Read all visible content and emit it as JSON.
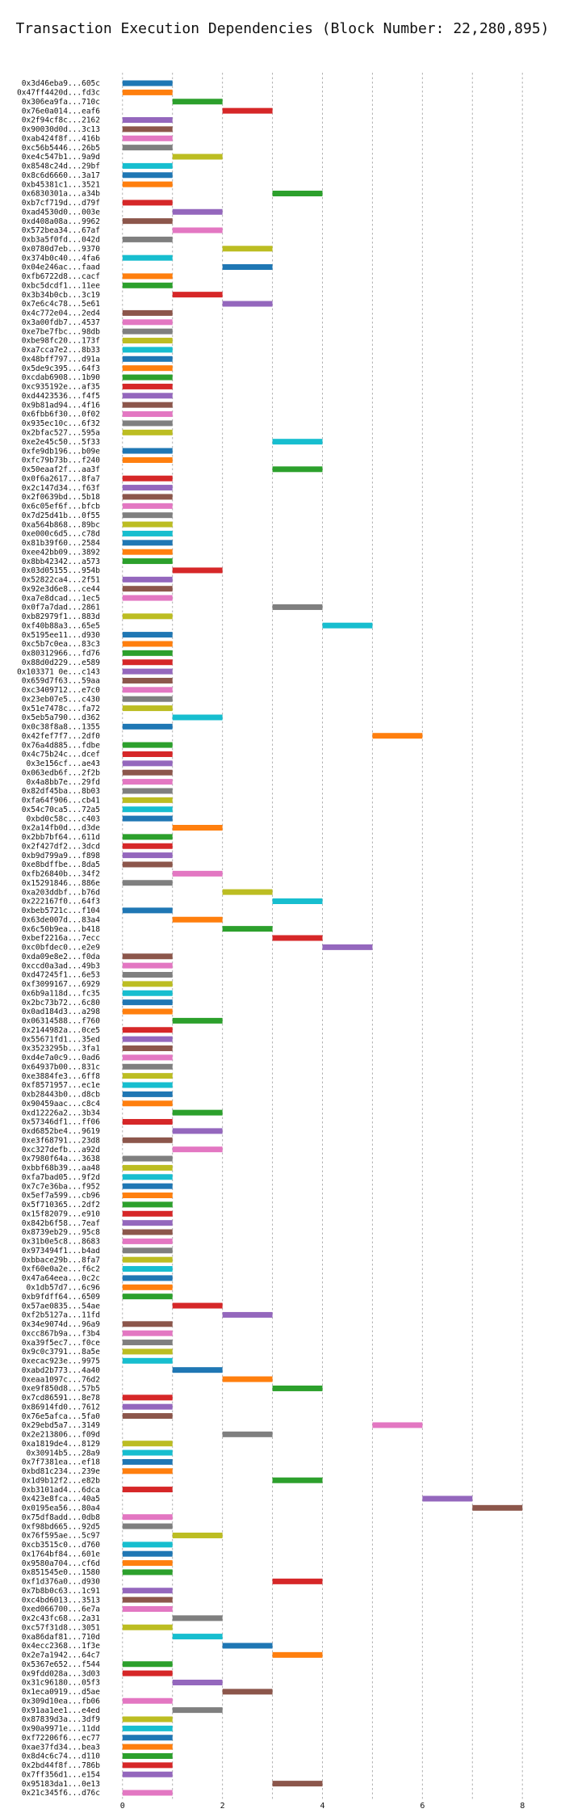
{
  "chart_data": {
    "type": "bar",
    "orientation": "horizontal-gantt",
    "title": "Transaction Execution Dependencies (Block Number: 22,280,895)",
    "xlabel": "",
    "ylabel": "",
    "xlim": [
      -0.4,
      8.4
    ],
    "xticks": [
      0,
      2,
      4,
      6,
      8
    ],
    "grid": "x-dashed",
    "legend": "none",
    "palette": [
      "#1f77b4",
      "#ff7f0e",
      "#2ca02c",
      "#d62728",
      "#9467bd",
      "#8c564b",
      "#e377c2",
      "#7f7f7f",
      "#bcbd22",
      "#17becf"
    ],
    "tasks": [
      {
        "label": "0x3d46eba9...605c",
        "start": 0,
        "end": 1
      },
      {
        "label": "0x47ff4420d...fd3c",
        "start": 0,
        "end": 1
      },
      {
        "label": "0x306ea9fa...710c",
        "start": 1,
        "end": 2
      },
      {
        "label": "0x76e0a014...eaf6",
        "start": 2,
        "end": 3
      },
      {
        "label": "0x2f94cf8c...2162",
        "start": 0,
        "end": 1
      },
      {
        "label": "0x90030d0d...3c13",
        "start": 0,
        "end": 1
      },
      {
        "label": "0xab424f8f...416b",
        "start": 0,
        "end": 1
      },
      {
        "label": "0xc56b5446...26b5",
        "start": 0,
        "end": 1
      },
      {
        "label": "0xe4c547b1...9a9d",
        "start": 1,
        "end": 2
      },
      {
        "label": "0x8548c24d...29bf",
        "start": 0,
        "end": 1
      },
      {
        "label": "0x8c6d6660...3a17",
        "start": 0,
        "end": 1
      },
      {
        "label": "0xb45381c1...3521",
        "start": 0,
        "end": 1
      },
      {
        "label": "0x6830301a...a34b",
        "start": 3,
        "end": 4
      },
      {
        "label": "0xb7cf719d...d79f",
        "start": 0,
        "end": 1
      },
      {
        "label": "0xad4530d0...003e",
        "start": 1,
        "end": 2
      },
      {
        "label": "0xd408a08a...9962",
        "start": 0,
        "end": 1
      },
      {
        "label": "0x572bea34...67af",
        "start": 1,
        "end": 2
      },
      {
        "label": "0xb3a5f0fd...042d",
        "start": 0,
        "end": 1
      },
      {
        "label": "0x0780d7eb...9370",
        "start": 2,
        "end": 3
      },
      {
        "label": "0x374b0c40...4fa6",
        "start": 0,
        "end": 1
      },
      {
        "label": "0x04e246ac...faad",
        "start": 2,
        "end": 3
      },
      {
        "label": "0xfb6722d8...cacf",
        "start": 0,
        "end": 1
      },
      {
        "label": "0xbc5dcdf1...11ee",
        "start": 0,
        "end": 1
      },
      {
        "label": "0x3b34b0cb...3c19",
        "start": 1,
        "end": 2
      },
      {
        "label": "0x7e6c4c78...5e61",
        "start": 2,
        "end": 3
      },
      {
        "label": "0x4c772e04...2ed4",
        "start": 0,
        "end": 1
      },
      {
        "label": "0x3a00fdb7...4537",
        "start": 0,
        "end": 1
      },
      {
        "label": "0xe7be7fbc...98db",
        "start": 0,
        "end": 1
      },
      {
        "label": "0xbe98fc20...173f",
        "start": 0,
        "end": 1
      },
      {
        "label": "0xa7cca7e2...8b33",
        "start": 0,
        "end": 1
      },
      {
        "label": "0x48bff797...d91a",
        "start": 0,
        "end": 1
      },
      {
        "label": "0x5de9c395...64f3",
        "start": 0,
        "end": 1
      },
      {
        "label": "0xcdab6908...1b90",
        "start": 0,
        "end": 1
      },
      {
        "label": "0xc935192e...af35",
        "start": 0,
        "end": 1
      },
      {
        "label": "0xd4423536...f4f5",
        "start": 0,
        "end": 1
      },
      {
        "label": "0x9b81ad94...4f16",
        "start": 0,
        "end": 1
      },
      {
        "label": "0x6fbb6f30...0f02",
        "start": 0,
        "end": 1
      },
      {
        "label": "0x935ec10c...6f32",
        "start": 0,
        "end": 1
      },
      {
        "label": "0x2bfac527...595a",
        "start": 0,
        "end": 1
      },
      {
        "label": "0xe2e45c50...5f33",
        "start": 3,
        "end": 4
      },
      {
        "label": "0xfe9db196...b09e",
        "start": 0,
        "end": 1
      },
      {
        "label": "0xfc79b73b...f240",
        "start": 0,
        "end": 1
      },
      {
        "label": "0x50eaaf2f...aa3f",
        "start": 3,
        "end": 4
      },
      {
        "label": "0x0f6a2617...8fa7",
        "start": 0,
        "end": 1
      },
      {
        "label": "0x2c147d34...f63f",
        "start": 0,
        "end": 1
      },
      {
        "label": "0x2f0639bd...5b18",
        "start": 0,
        "end": 1
      },
      {
        "label": "0x6c05ef6f...bfcb",
        "start": 0,
        "end": 1
      },
      {
        "label": "0x7d25d41b...0f55",
        "start": 0,
        "end": 1
      },
      {
        "label": "0xa564b868...89bc",
        "start": 0,
        "end": 1
      },
      {
        "label": "0xe000c6d5...c78d",
        "start": 0,
        "end": 1
      },
      {
        "label": "0x81b39f60...2584",
        "start": 0,
        "end": 1
      },
      {
        "label": "0xee42bb09...3892",
        "start": 0,
        "end": 1
      },
      {
        "label": "0x8bb42342...a573",
        "start": 0,
        "end": 1
      },
      {
        "label": "0x03d05155...954b",
        "start": 1,
        "end": 2
      },
      {
        "label": "0x52822ca4...2f51",
        "start": 0,
        "end": 1
      },
      {
        "label": "0x92e3d6e8...ce44",
        "start": 0,
        "end": 1
      },
      {
        "label": "0xa7e8dcad...1ec5",
        "start": 0,
        "end": 1
      },
      {
        "label": "0x0f7a7dad...2861",
        "start": 3,
        "end": 4
      },
      {
        "label": "0xb82979f1...883d",
        "start": 0,
        "end": 1
      },
      {
        "label": "0xf40b88a3...65e5",
        "start": 4,
        "end": 5
      },
      {
        "label": "0x5195ee11...d930",
        "start": 0,
        "end": 1
      },
      {
        "label": "0xc5b7c0ea...83c3",
        "start": 0,
        "end": 1
      },
      {
        "label": "0x80312966...fd76",
        "start": 0,
        "end": 1
      },
      {
        "label": "0x88d0d229...e589",
        "start": 0,
        "end": 1
      },
      {
        "label": "0x103371 0e...c143",
        "start": 0,
        "end": 1
      },
      {
        "label": "0x659d7f63...59aa",
        "start": 0,
        "end": 1
      },
      {
        "label": "0xc3409712...e7c0",
        "start": 0,
        "end": 1
      },
      {
        "label": "0x23eb07e5...c430",
        "start": 0,
        "end": 1
      },
      {
        "label": "0x51e7478c...fa72",
        "start": 0,
        "end": 1
      },
      {
        "label": "0x5eb5a790...d362",
        "start": 1,
        "end": 2
      },
      {
        "label": "0x0c38f8a8...1355",
        "start": 0,
        "end": 1
      },
      {
        "label": "0x42fef7f7...2df0",
        "start": 5,
        "end": 6
      },
      {
        "label": "0x76a4d885...fdbe",
        "start": 0,
        "end": 1
      },
      {
        "label": "0x4c75b24c...dcef",
        "start": 0,
        "end": 1
      },
      {
        "label": "0x3e156cf...ae43",
        "start": 0,
        "end": 1
      },
      {
        "label": "0x063edb6f...2f2b",
        "start": 0,
        "end": 1
      },
      {
        "label": "0x4a8bb7e...29fd",
        "start": 0,
        "end": 1
      },
      {
        "label": "0x82df45ba...8b03",
        "start": 0,
        "end": 1
      },
      {
        "label": "0xfa64f906...cb41",
        "start": 0,
        "end": 1
      },
      {
        "label": "0x54c70ca5...72a5",
        "start": 0,
        "end": 1
      },
      {
        "label": "0xbd0c58c...c403",
        "start": 0,
        "end": 1
      },
      {
        "label": "0x2a14fb0d...d3de",
        "start": 1,
        "end": 2
      },
      {
        "label": "0x2bb7bf64...611d",
        "start": 0,
        "end": 1
      },
      {
        "label": "0x2f427df2...3dcd",
        "start": 0,
        "end": 1
      },
      {
        "label": "0xb9d799a9...f898",
        "start": 0,
        "end": 1
      },
      {
        "label": "0xe8bdffbe...8da5",
        "start": 0,
        "end": 1
      },
      {
        "label": "0xfb26840b...34f2",
        "start": 1,
        "end": 2
      },
      {
        "label": "0x15291846...886e",
        "start": 0,
        "end": 1
      },
      {
        "label": "0xa203ddbf...b76d",
        "start": 2,
        "end": 3
      },
      {
        "label": "0x222167f0...64f3",
        "start": 3,
        "end": 4
      },
      {
        "label": "0xbeb5721c...f104",
        "start": 0,
        "end": 1
      },
      {
        "label": "0x63de007d...83a4",
        "start": 1,
        "end": 2
      },
      {
        "label": "0x6c50b9ea...b418",
        "start": 2,
        "end": 3
      },
      {
        "label": "0xbef2216a...7ecc",
        "start": 3,
        "end": 4
      },
      {
        "label": "0xc0bfdec0...e2e9",
        "start": 4,
        "end": 5
      },
      {
        "label": "0xda09e8e2...f0da",
        "start": 0,
        "end": 1
      },
      {
        "label": "0xccd0a3ad...49b3",
        "start": 0,
        "end": 1
      },
      {
        "label": "0xd47245f1...6e53",
        "start": 0,
        "end": 1
      },
      {
        "label": "0xf3099167...6929",
        "start": 0,
        "end": 1
      },
      {
        "label": "0x6b9a118d...fc35",
        "start": 0,
        "end": 1
      },
      {
        "label": "0x2bc73b72...6c80",
        "start": 0,
        "end": 1
      },
      {
        "label": "0x0ad184d3...a298",
        "start": 0,
        "end": 1
      },
      {
        "label": "0x06314588...f760",
        "start": 1,
        "end": 2
      },
      {
        "label": "0x2144982a...0ce5",
        "start": 0,
        "end": 1
      },
      {
        "label": "0x55671fd1...35ed",
        "start": 0,
        "end": 1
      },
      {
        "label": "0x3523295b...3fa1",
        "start": 0,
        "end": 1
      },
      {
        "label": "0xd4e7a0c9...0ad6",
        "start": 0,
        "end": 1
      },
      {
        "label": "0x64937b00...831c",
        "start": 0,
        "end": 1
      },
      {
        "label": "0xe3884fe3...6ff8",
        "start": 0,
        "end": 1
      },
      {
        "label": "0xf8571957...ec1e",
        "start": 0,
        "end": 1
      },
      {
        "label": "0xb28443b0...d8cb",
        "start": 0,
        "end": 1
      },
      {
        "label": "0x90459aac...c8c4",
        "start": 0,
        "end": 1
      },
      {
        "label": "0xd12226a2...3b34",
        "start": 1,
        "end": 2
      },
      {
        "label": "0x57346df1...ff06",
        "start": 0,
        "end": 1
      },
      {
        "label": "0xd6852be4...9619",
        "start": 1,
        "end": 2
      },
      {
        "label": "0xe3f68791...23d8",
        "start": 0,
        "end": 1
      },
      {
        "label": "0xc327defb...a92d",
        "start": 1,
        "end": 2
      },
      {
        "label": "0x7980f64a...3638",
        "start": 0,
        "end": 1
      },
      {
        "label": "0xbbf68b39...aa48",
        "start": 0,
        "end": 1
      },
      {
        "label": "0xfa7bad05...9f2d",
        "start": 0,
        "end": 1
      },
      {
        "label": "0x7c7e36ba...f952",
        "start": 0,
        "end": 1
      },
      {
        "label": "0x5ef7a599...cb96",
        "start": 0,
        "end": 1
      },
      {
        "label": "0x5f710365...2df2",
        "start": 0,
        "end": 1
      },
      {
        "label": "0x15f82079...e910",
        "start": 0,
        "end": 1
      },
      {
        "label": "0x842b6f58...7eaf",
        "start": 0,
        "end": 1
      },
      {
        "label": "0x8739eb29...95c8",
        "start": 0,
        "end": 1
      },
      {
        "label": "0x31b0e5c8...8683",
        "start": 0,
        "end": 1
      },
      {
        "label": "0x973494f1...b4ad",
        "start": 0,
        "end": 1
      },
      {
        "label": "0xbbace29b...8fa7",
        "start": 0,
        "end": 1
      },
      {
        "label": "0xf60e0a2e...f6c2",
        "start": 0,
        "end": 1
      },
      {
        "label": "0x47a64eea...0c2c",
        "start": 0,
        "end": 1
      },
      {
        "label": "0x1db57d7...6c96",
        "start": 0,
        "end": 1
      },
      {
        "label": "0xb9fdff64...6509",
        "start": 0,
        "end": 1
      },
      {
        "label": "0x57ae0835...54ae",
        "start": 1,
        "end": 2
      },
      {
        "label": "0xf2b5127a...11fd",
        "start": 2,
        "end": 3
      },
      {
        "label": "0x34e9074d...96a9",
        "start": 0,
        "end": 1
      },
      {
        "label": "0xcc867b9a...f3b4",
        "start": 0,
        "end": 1
      },
      {
        "label": "0xa39f5ec7...f0ce",
        "start": 0,
        "end": 1
      },
      {
        "label": "0x9c0c3791...8a5e",
        "start": 0,
        "end": 1
      },
      {
        "label": "0xecac923e...9975",
        "start": 0,
        "end": 1
      },
      {
        "label": "0xabd2b773...4a40",
        "start": 1,
        "end": 2
      },
      {
        "label": "0xeaa1097c...76d2",
        "start": 2,
        "end": 3
      },
      {
        "label": "0xe9f850d8...57b5",
        "start": 3,
        "end": 4
      },
      {
        "label": "0x7cd86591...8e78",
        "start": 0,
        "end": 1
      },
      {
        "label": "0x86914fd0...7612",
        "start": 0,
        "end": 1
      },
      {
        "label": "0x76e5afca...5fa0",
        "start": 0,
        "end": 1
      },
      {
        "label": "0x29ebd5a7...3149",
        "start": 5,
        "end": 6
      },
      {
        "label": "0x2e213806...f09d",
        "start": 2,
        "end": 3
      },
      {
        "label": "0xa1819de4...8129",
        "start": 0,
        "end": 1
      },
      {
        "label": "0x30914b5...28a9",
        "start": 0,
        "end": 1
      },
      {
        "label": "0x7f7381ea...ef18",
        "start": 0,
        "end": 1
      },
      {
        "label": "0xbd81c234...239e",
        "start": 0,
        "end": 1
      },
      {
        "label": "0x1d9b12f2...e82b",
        "start": 3,
        "end": 4
      },
      {
        "label": "0xb3101ad4...6dca",
        "start": 0,
        "end": 1
      },
      {
        "label": "0x423e8fca...40a5",
        "start": 6,
        "end": 7
      },
      {
        "label": "0x0195ea56...80a4",
        "start": 7,
        "end": 8
      },
      {
        "label": "0x75df8add...0db8",
        "start": 0,
        "end": 1
      },
      {
        "label": "0xf98bd665...92d5",
        "start": 0,
        "end": 1
      },
      {
        "label": "0x76f595ae...5c97",
        "start": 1,
        "end": 2
      },
      {
        "label": "0xcb3515c0...d760",
        "start": 0,
        "end": 1
      },
      {
        "label": "0x1764bf84...601e",
        "start": 0,
        "end": 1
      },
      {
        "label": "0x9580a704...cf6d",
        "start": 0,
        "end": 1
      },
      {
        "label": "0x851545e0...1580",
        "start": 0,
        "end": 1
      },
      {
        "label": "0xf1d376a0...d930",
        "start": 3,
        "end": 4
      },
      {
        "label": "0x7b8b0c63...1c91",
        "start": 0,
        "end": 1
      },
      {
        "label": "0xc4bd6013...3513",
        "start": 0,
        "end": 1
      },
      {
        "label": "0xed066700...6e7a",
        "start": 0,
        "end": 1
      },
      {
        "label": "0x2c43fc68...2a31",
        "start": 1,
        "end": 2
      },
      {
        "label": "0xc57f31d8...3051",
        "start": 0,
        "end": 1
      },
      {
        "label": "0xa86daf81...710d",
        "start": 1,
        "end": 2
      },
      {
        "label": "0x4ecc2368...1f3e",
        "start": 2,
        "end": 3
      },
      {
        "label": "0x2e7a1942...64c7",
        "start": 3,
        "end": 4
      },
      {
        "label": "0x5367e652...f544",
        "start": 0,
        "end": 1
      },
      {
        "label": "0x9fdd028a...3d03",
        "start": 0,
        "end": 1
      },
      {
        "label": "0x31c96180...05f3",
        "start": 1,
        "end": 2
      },
      {
        "label": "0x1eca0919...d5ae",
        "start": 2,
        "end": 3
      },
      {
        "label": "0x309d10ea...fb06",
        "start": 0,
        "end": 1
      },
      {
        "label": "0x91aa1ee1...e4ed",
        "start": 1,
        "end": 2
      },
      {
        "label": "0x87839d3a...3df9",
        "start": 0,
        "end": 1
      },
      {
        "label": "0x90a9971e...11dd",
        "start": 0,
        "end": 1
      },
      {
        "label": "0xf72206f6...ec77",
        "start": 0,
        "end": 1
      },
      {
        "label": "0xae37fd34...bea3",
        "start": 0,
        "end": 1
      },
      {
        "label": "0x8d4c6c74...d110",
        "start": 0,
        "end": 1
      },
      {
        "label": "0x2bd44f8f...786b",
        "start": 0,
        "end": 1
      },
      {
        "label": "0x7ff356d1...e154",
        "start": 0,
        "end": 1
      },
      {
        "label": "0x95183da1...0e13",
        "start": 3,
        "end": 4
      },
      {
        "label": "0x21c345f6...d76c",
        "start": 0,
        "end": 1
      }
    ]
  }
}
